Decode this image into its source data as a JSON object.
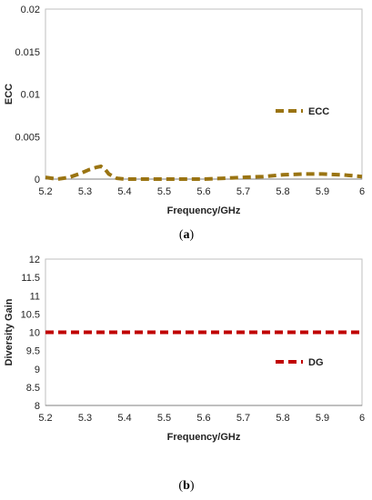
{
  "chart_data": [
    {
      "type": "line",
      "panel_label": "(a)",
      "caption_open": "(",
      "caption_letter": "a",
      "caption_close": ")",
      "xlabel": "Frequency/GHz",
      "ylabel": "ECC",
      "xlim": [
        5.2,
        6
      ],
      "ylim": [
        0,
        0.02
      ],
      "x_ticks": [
        "5.2",
        "5.3",
        "5.4",
        "5.5",
        "5.6",
        "5.7",
        "5.8",
        "5.9",
        "6"
      ],
      "y_ticks": [
        "0",
        "0.005",
        "0.01",
        "0.015",
        "0.02"
      ],
      "grid": false,
      "legend_position": "right-middle",
      "series": [
        {
          "name": "ECC",
          "color": "#9a7412",
          "style": "dashed",
          "x": [
            5.2,
            5.23,
            5.26,
            5.29,
            5.31,
            5.33,
            5.34,
            5.35,
            5.36,
            5.38,
            5.4,
            5.45,
            5.5,
            5.55,
            5.6,
            5.65,
            5.7,
            5.75,
            5.8,
            5.85,
            5.9,
            5.95,
            6.0
          ],
          "y": [
            0.0002,
            0.0,
            0.0002,
            0.0007,
            0.0011,
            0.0014,
            0.0015,
            0.0012,
            0.0006,
            0.0001,
            0.0,
            0.0,
            0.0,
            0.0,
            0.0,
            0.0001,
            0.0002,
            0.0003,
            0.0005,
            0.0006,
            0.0006,
            0.0005,
            0.0003
          ]
        }
      ]
    },
    {
      "type": "line",
      "panel_label": "(b)",
      "caption_open": "(",
      "caption_letter": "b",
      "caption_close": ")",
      "xlabel": "Frequency/GHz",
      "ylabel": "Diversity Gain",
      "xlim": [
        5.2,
        6
      ],
      "ylim": [
        8,
        12
      ],
      "x_ticks": [
        "5.2",
        "5.3",
        "5.4",
        "5.5",
        "5.6",
        "5.7",
        "5.8",
        "5.9",
        "6"
      ],
      "y_ticks": [
        "8",
        "8.5",
        "9",
        "9.5",
        "10",
        "10.5",
        "11",
        "11.5",
        "12"
      ],
      "grid": false,
      "legend_position": "right-middle",
      "series": [
        {
          "name": "DG",
          "color": "#c00000",
          "style": "dashed",
          "x": [
            5.2,
            5.3,
            5.4,
            5.5,
            5.6,
            5.7,
            5.8,
            5.9,
            6.0
          ],
          "y": [
            10.0,
            10.0,
            10.0,
            10.0,
            10.0,
            10.0,
            10.0,
            10.0,
            10.0
          ]
        }
      ]
    }
  ]
}
